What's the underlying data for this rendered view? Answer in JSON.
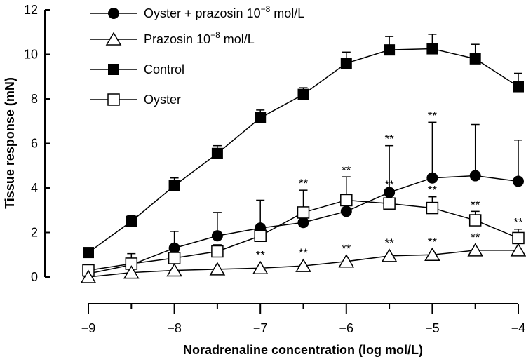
{
  "chart_data": {
    "type": "line",
    "xlabel": "Noradrenaline concentration (log mol/L)",
    "ylabel": "Tissue response (mN)",
    "xlim": [
      -9,
      -4
    ],
    "ylim": [
      0,
      12
    ],
    "x_ticks": [
      -9,
      -8.5,
      -8,
      -7.5,
      -7,
      -6.5,
      -6,
      -5.5,
      -5,
      -4.5,
      -4
    ],
    "x_tick_labels": [
      "−9",
      "−8",
      "−7",
      "−6",
      "−5",
      "−4"
    ],
    "y_ticks": [
      0,
      2,
      4,
      6,
      8,
      10,
      12
    ],
    "y_tick_labels": [
      "0",
      "2",
      "4",
      "6",
      "8",
      "10",
      "12"
    ],
    "grid": false,
    "legend_position": "top-left",
    "legend": [
      {
        "key": "oyster_prazosin",
        "parts": [
          "Oyster + prazosin 10",
          "−8",
          " mol/L"
        ]
      },
      {
        "key": "prazosin",
        "parts": [
          "Prazosin 10",
          "−8",
          " mol/L"
        ]
      },
      {
        "key": "control",
        "parts": [
          "Control",
          "",
          ""
        ]
      },
      {
        "key": "oyster",
        "parts": [
          "Oyster",
          "",
          ""
        ]
      }
    ],
    "series": [
      {
        "key": "control",
        "marker": "square-filled",
        "x": [
          -9,
          -8.5,
          -8,
          -7.5,
          -7,
          -6.5,
          -6,
          -5.5,
          -5,
          -4.5,
          -4
        ],
        "y": [
          1.1,
          2.5,
          4.1,
          5.55,
          7.15,
          8.2,
          9.6,
          10.2,
          10.25,
          9.8,
          8.55
        ],
        "error": [
          0,
          0.25,
          0.35,
          0.35,
          0.35,
          0.3,
          0.5,
          0.6,
          0.65,
          0.65,
          0.6
        ],
        "significance": [
          "",
          "",
          "",
          "",
          "",
          "",
          "",
          "",
          "",
          "",
          ""
        ]
      },
      {
        "key": "oyster_prazosin",
        "marker": "circle-filled",
        "x": [
          -9,
          -8.5,
          -8,
          -7.5,
          -7,
          -6.5,
          -6,
          -5.5,
          -5,
          -4.5,
          -4
        ],
        "y": [
          0.15,
          0.55,
          1.3,
          1.85,
          2.2,
          2.45,
          2.95,
          3.8,
          4.45,
          4.55,
          4.3
        ],
        "error": [
          0,
          0,
          0.75,
          1.05,
          1.25,
          0,
          0,
          2.1,
          2.5,
          2.3,
          1.85
        ],
        "significance": [
          "",
          "",
          "",
          "",
          "",
          "",
          "",
          "**",
          "**",
          "",
          ""
        ]
      },
      {
        "key": "oyster",
        "marker": "square-open",
        "x": [
          -9,
          -8.5,
          -8,
          -7.5,
          -7,
          -6.5,
          -6,
          -5.5,
          -5,
          -4.5,
          -4
        ],
        "y": [
          0.3,
          0.6,
          0.85,
          1.15,
          1.85,
          2.9,
          3.45,
          3.3,
          3.1,
          2.55,
          1.75
        ],
        "error": [
          0,
          0.45,
          0.4,
          0.3,
          0.45,
          1.0,
          1.05,
          0.55,
          0.5,
          0.4,
          0.4
        ],
        "significance": [
          "",
          "",
          "",
          "",
          "",
          "**",
          "**",
          "**",
          "**",
          "**",
          "**"
        ]
      },
      {
        "key": "prazosin",
        "marker": "triangle-open",
        "x": [
          -9,
          -8.5,
          -8,
          -7.5,
          -7,
          -6.5,
          -6,
          -5.5,
          -5,
          -4.5,
          -4
        ],
        "y": [
          0,
          0.2,
          0.3,
          0.35,
          0.4,
          0.5,
          0.7,
          0.95,
          1.0,
          1.2,
          1.2
        ],
        "error": [
          0,
          0,
          0,
          0,
          0,
          0,
          0,
          0,
          0,
          0,
          0
        ],
        "significance": [
          "",
          "",
          "",
          "",
          "**",
          "**",
          "**",
          "**",
          "**",
          "**",
          ""
        ]
      }
    ]
  }
}
